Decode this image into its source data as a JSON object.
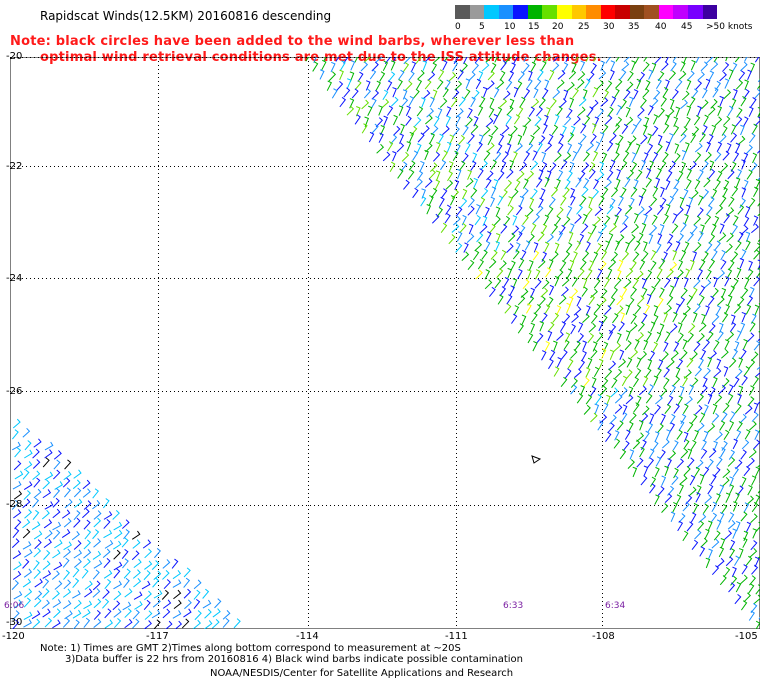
{
  "title": "Rapidscat Winds(12.5KM) 20160816 descending",
  "note": {
    "line1": "Note: black circles have been added to the wind barbs, wherever less than",
    "line2": "optimal wind retrieval conditions are met due to the ISS attitude changes."
  },
  "legend": {
    "colors": [
      "#5a5a5a",
      "#9a9a9a",
      "#00c8ff",
      "#1a90ff",
      "#0a14ff",
      "#00b400",
      "#66e000",
      "#ffff00",
      "#ffc800",
      "#ff8c00",
      "#ff0000",
      "#c80000",
      "#7a4010",
      "#a05020",
      "#ff00ff",
      "#c000ff",
      "#7800ff",
      "#3c00a0"
    ],
    "labels": [
      "0",
      "5",
      "10",
      "15",
      "20",
      "25",
      "30",
      "35",
      "40",
      "45",
      ">50 knots"
    ]
  },
  "lat_labels": [
    "-20",
    "-22",
    "-24",
    "-26",
    "-28",
    "-30"
  ],
  "lon_labels": [
    "-120",
    "-117",
    "-114",
    "-111",
    "-108",
    "-105"
  ],
  "time_labels": [
    "6:06",
    "6:33",
    "6:34"
  ],
  "footnote": {
    "line1": "Note: 1) Times are GMT 2)Times along bottom correspond to measurement at ~20S",
    "line2": "3)Data buffer is 22 hrs from 20160816 4) Black wind barbs indicate possible contamination",
    "line3": "NOAA/NESDIS/Center for Satellite Applications and Research"
  }
}
